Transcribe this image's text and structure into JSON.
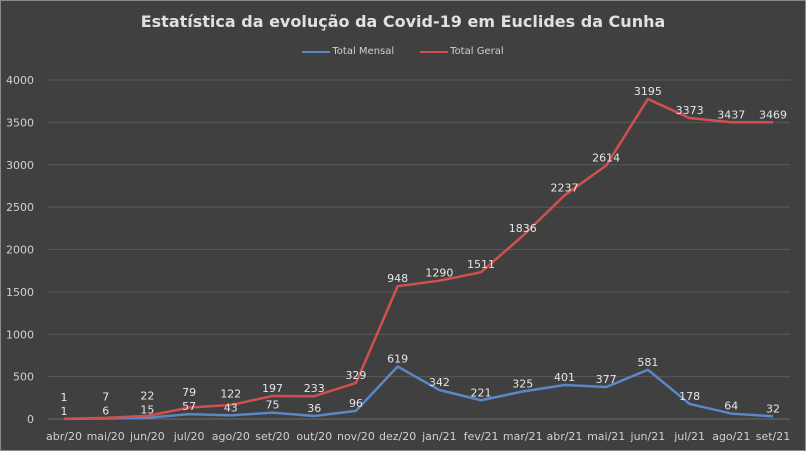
{
  "chart_data": {
    "type": "line",
    "stacked": true,
    "title": "Estatística da evolução da Covid-19 em Euclides da Cunha",
    "xlabel": "",
    "ylabel": "",
    "ylim": [
      0,
      4000
    ],
    "yticks": [
      0,
      500,
      1000,
      1500,
      2000,
      2500,
      3000,
      3500,
      4000
    ],
    "grid": true,
    "legend_position": "top",
    "categories": [
      "abr/20",
      "mai/20",
      "jun/20",
      "jul/20",
      "ago/20",
      "set/20",
      "out/20",
      "nov/20",
      "dez/20",
      "jan/21",
      "fev/21",
      "mar/21",
      "abr/21",
      "mai/21",
      "jun/21",
      "jul/21",
      "ago/21",
      "set/21"
    ],
    "series": [
      {
        "name": "Total Mensal",
        "color": "#5b87c7",
        "values": [
          1,
          6,
          15,
          57,
          43,
          75,
          36,
          96,
          619,
          342,
          221,
          325,
          401,
          377,
          581,
          178,
          64,
          32
        ]
      },
      {
        "name": "Total Geral",
        "color": "#d0504f",
        "values": [
          1,
          7,
          22,
          79,
          122,
          197,
          233,
          329,
          948,
          1290,
          1511,
          1836,
          2237,
          2614,
          3195,
          3373,
          3437,
          3469
        ]
      }
    ]
  }
}
